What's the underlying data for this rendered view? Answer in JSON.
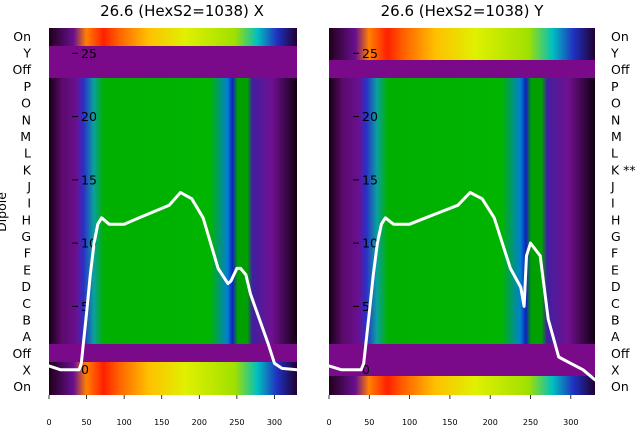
{
  "chart_data": [
    {
      "type": "heatmap",
      "title": "26.6 (HexS2=1038) X",
      "ylabel": "Dipole",
      "xlim": [
        0,
        330
      ],
      "ylim": [
        -2,
        27
      ],
      "x_ticks": [
        0,
        50,
        100,
        150,
        200,
        250,
        300
      ],
      "y_ticks": [
        0,
        5,
        10,
        15,
        20,
        25
      ],
      "rows_top_to_bottom": [
        "On",
        "Y",
        "Off",
        "P",
        "O",
        "N",
        "M",
        "L",
        "K",
        "J",
        "I",
        "H",
        "G",
        "F",
        "E",
        "D",
        "C",
        "B",
        "A",
        "Off",
        "X",
        "On"
      ],
      "line_x": [
        0,
        15,
        40,
        43,
        50,
        55,
        60,
        65,
        70,
        80,
        100,
        120,
        140,
        160,
        175,
        190,
        205,
        215,
        225,
        238,
        242,
        250,
        255,
        262,
        268,
        280,
        292,
        300,
        310,
        330
      ],
      "line_y": [
        0.3,
        0,
        0,
        0.5,
        4.5,
        7.5,
        10,
        11.5,
        12,
        11.5,
        11.5,
        12,
        12.5,
        13,
        14,
        13.5,
        12,
        10,
        8,
        6.8,
        7,
        8,
        8,
        7.5,
        6,
        4,
        2,
        0.5,
        0.1,
        0
      ]
    },
    {
      "type": "heatmap",
      "title": "26.6 (HexS2=1038) Y",
      "xlim": [
        0,
        330
      ],
      "ylim": [
        -2,
        27
      ],
      "x_ticks": [
        0,
        50,
        100,
        150,
        200,
        250,
        300
      ],
      "y_ticks": [
        0,
        5,
        10,
        15,
        20,
        25
      ],
      "rows_top_to_bottom": [
        "On",
        "Y",
        "Off",
        "P",
        "O",
        "N",
        "M",
        "L",
        "K **",
        "J",
        "I",
        "H",
        "G",
        "F",
        "E",
        "D",
        "C",
        "B",
        "A",
        "Off",
        "X",
        "On"
      ],
      "line_x": [
        0,
        15,
        40,
        43,
        50,
        55,
        60,
        65,
        70,
        80,
        100,
        120,
        140,
        160,
        175,
        190,
        205,
        215,
        225,
        238,
        242,
        245,
        250,
        262,
        272,
        285,
        300,
        315,
        330
      ],
      "line_y": [
        0.3,
        0,
        0,
        0.5,
        4.5,
        7.5,
        10,
        11.5,
        12,
        11.5,
        11.5,
        12,
        12.5,
        13,
        14,
        13.5,
        12,
        10,
        8,
        6.5,
        5,
        9,
        10,
        9,
        4,
        1,
        0.5,
        0,
        -0.8
      ]
    }
  ]
}
